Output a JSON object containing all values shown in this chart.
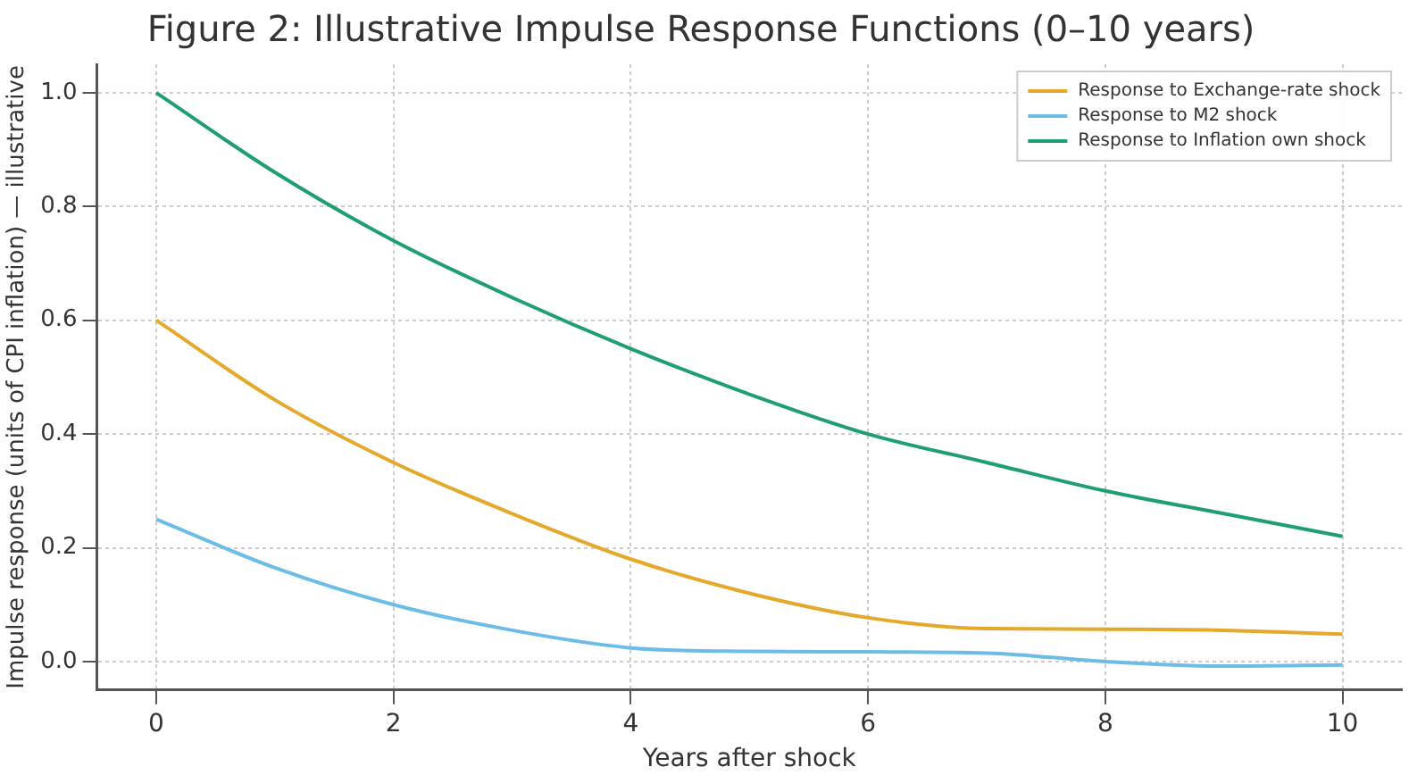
{
  "chart_data": {
    "type": "line",
    "title": "Figure 2: Illustrative Impulse Response Functions (0–10 years)",
    "xlabel": "Years after shock",
    "ylabel": "Impulse response (units of CPI inflation) — illustrative",
    "x": [
      0,
      1,
      2,
      3,
      4,
      5,
      6,
      7,
      8,
      9,
      10
    ],
    "series": [
      {
        "name": "Response to Exchange-rate shock",
        "color": "#e6a82a",
        "values": [
          0.6,
          0.46,
          0.35,
          0.26,
          0.18,
          0.12,
          0.077,
          0.058,
          0.057,
          0.055,
          0.048
        ]
      },
      {
        "name": "Response to M2 shock",
        "color": "#6bbde8",
        "values": [
          0.25,
          0.165,
          0.1,
          0.055,
          0.024,
          0.018,
          0.017,
          0.015,
          0.0,
          -0.008,
          -0.006
        ]
      },
      {
        "name": "Response to Inflation own shock",
        "color": "#1f9e72",
        "values": [
          1.0,
          0.86,
          0.74,
          0.64,
          0.55,
          0.47,
          0.4,
          0.35,
          0.3,
          0.26,
          0.22
        ]
      }
    ],
    "xlim": [
      -0.5,
      10.5
    ],
    "xticks": [
      0,
      2,
      4,
      6,
      8,
      10
    ],
    "ylim": [
      -0.05,
      1.05
    ],
    "yticks": [
      {
        "value": 0,
        "label": "0.0"
      },
      0.2,
      0.4,
      0.6,
      0.8,
      {
        "value": 1,
        "label": "1.0"
      }
    ],
    "grid": true,
    "legend": "top right",
    "marker": "none",
    "line_style": "solid"
  }
}
